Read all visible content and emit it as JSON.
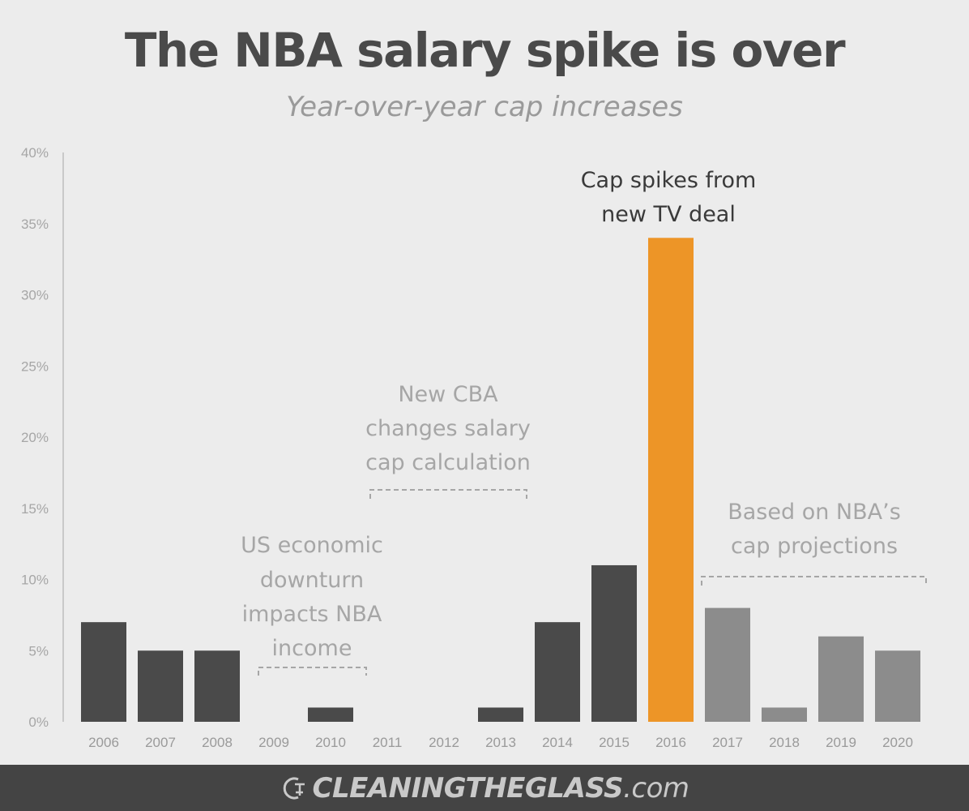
{
  "title": "The NBA salary spike is over",
  "subtitle": "Year-over-year cap increases",
  "chart_data": {
    "type": "bar",
    "categories": [
      "2006",
      "2007",
      "2008",
      "2009",
      "2010",
      "2011",
      "2012",
      "2013",
      "2014",
      "2015",
      "2016",
      "2017",
      "2018",
      "2019",
      "2020"
    ],
    "values": [
      7,
      5,
      5,
      0,
      1,
      0,
      0,
      1,
      7,
      11,
      34,
      8,
      1,
      6,
      5
    ],
    "ylim": [
      0,
      40
    ],
    "yticks": [
      0,
      5,
      10,
      15,
      20,
      25,
      30,
      35,
      40
    ],
    "ytick_labels": [
      "0%",
      "5%",
      "10%",
      "15%",
      "20%",
      "25%",
      "30%",
      "35%",
      "40%"
    ],
    "bar_colors": [
      "#4a4a4a",
      "#4a4a4a",
      "#4a4a4a",
      "#4a4a4a",
      "#4a4a4a",
      "#4a4a4a",
      "#4a4a4a",
      "#4a4a4a",
      "#4a4a4a",
      "#4a4a4a",
      "#ed9527",
      "#8c8c8c",
      "#8c8c8c",
      "#8c8c8c",
      "#8c8c8c"
    ],
    "annotations": [
      {
        "lines": [
          "US economic",
          "downturn",
          "impacts NBA",
          "income"
        ],
        "bracket": [
          "2009",
          "2010"
        ],
        "color": "#a6a6a6"
      },
      {
        "lines": [
          "New CBA",
          "changes salary",
          "cap calculation"
        ],
        "bracket": [
          "2011",
          "2013"
        ],
        "color": "#a6a6a6"
      },
      {
        "lines": [
          "Cap spikes from",
          "new TV deal"
        ],
        "bracket": null,
        "color": "#3a3a3a"
      },
      {
        "lines": [
          "Based on NBA’s",
          "cap projections"
        ],
        "bracket": [
          "2017",
          "2020"
        ],
        "color": "#a6a6a6"
      }
    ],
    "grid": false
  },
  "footer": {
    "brand": "CLEANINGTHEGLASS",
    "suffix": ".com"
  }
}
